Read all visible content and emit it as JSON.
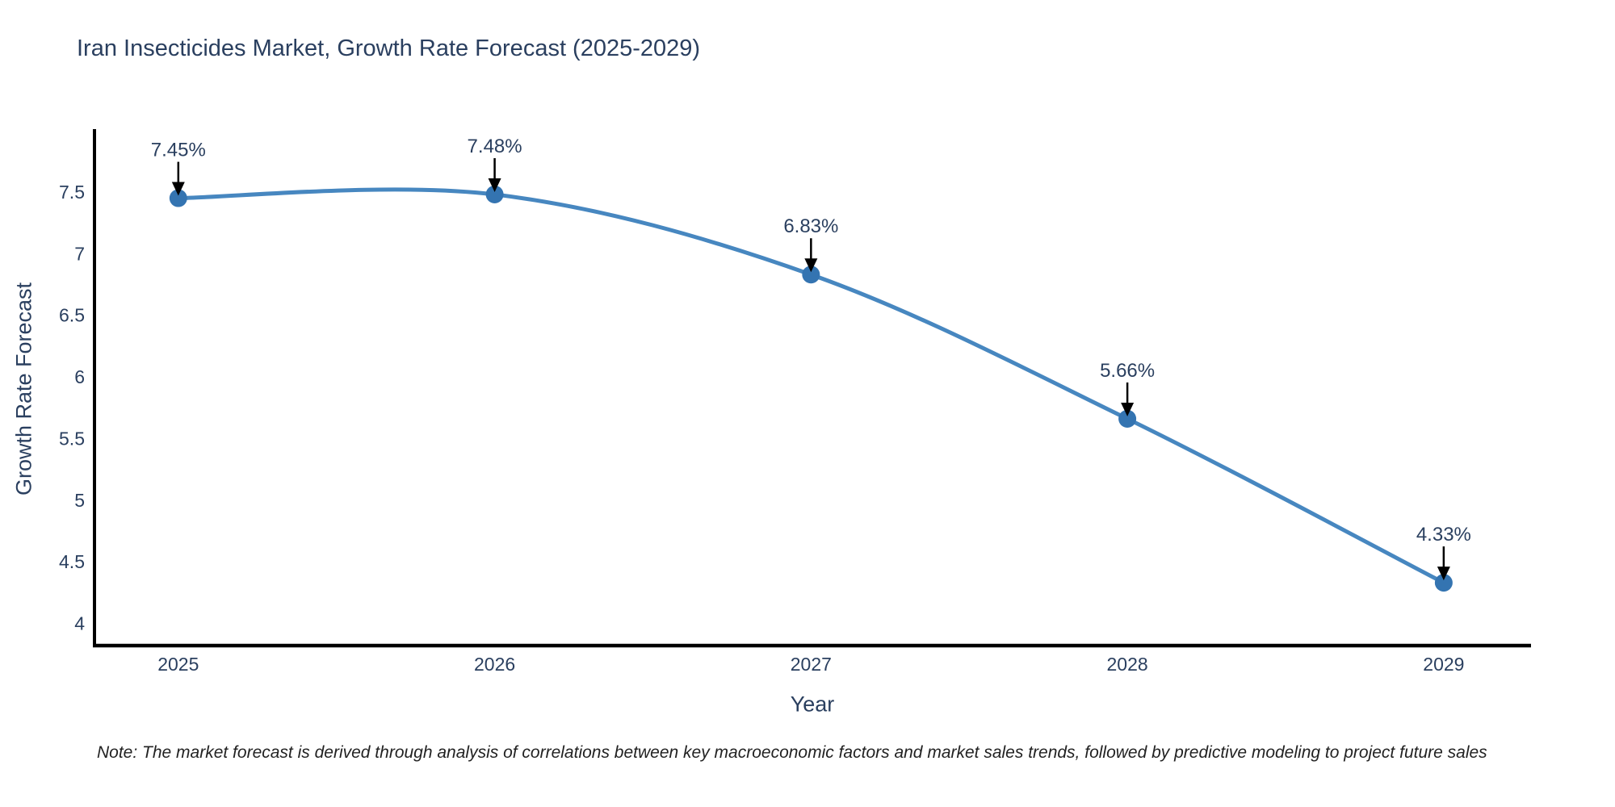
{
  "title": "Iran Insecticides Market, Growth Rate Forecast (2025-2029)",
  "note": "Note: The market forecast is derived through analysis of correlations between key macroeconomic factors and market sales trends, followed by predictive modeling to project future sales",
  "chart_data": {
    "type": "line",
    "title": "Iran Insecticides Market, Growth Rate Forecast (2025-2029)",
    "xlabel": "Year",
    "ylabel": "Growth Rate Forecast",
    "x": [
      2025,
      2026,
      2027,
      2028,
      2029
    ],
    "values": [
      7.45,
      7.48,
      6.83,
      5.66,
      4.33
    ],
    "point_labels": [
      "7.45%",
      "7.48%",
      "6.83%",
      "5.66%",
      "4.33%"
    ],
    "x_tick_labels": [
      "2025",
      "2026",
      "2027",
      "2028",
      "2029"
    ],
    "y_ticks": [
      4,
      4.5,
      5,
      5.5,
      6,
      6.5,
      7,
      7.5
    ],
    "y_tick_labels": [
      "4",
      "4.5",
      "5",
      "5.5",
      "6",
      "6.5",
      "7",
      "7.5"
    ],
    "xlim": [
      2024.735,
      2029.276
    ],
    "ylim": [
      3.82,
      8.01
    ],
    "grid": false,
    "legend_position": "none",
    "line_shape": "spline",
    "colors": {
      "line": "#4787c0",
      "marker": "#3474b1",
      "axis": "#000000",
      "text": "#2a3f5f",
      "arrow": "#000000"
    }
  }
}
